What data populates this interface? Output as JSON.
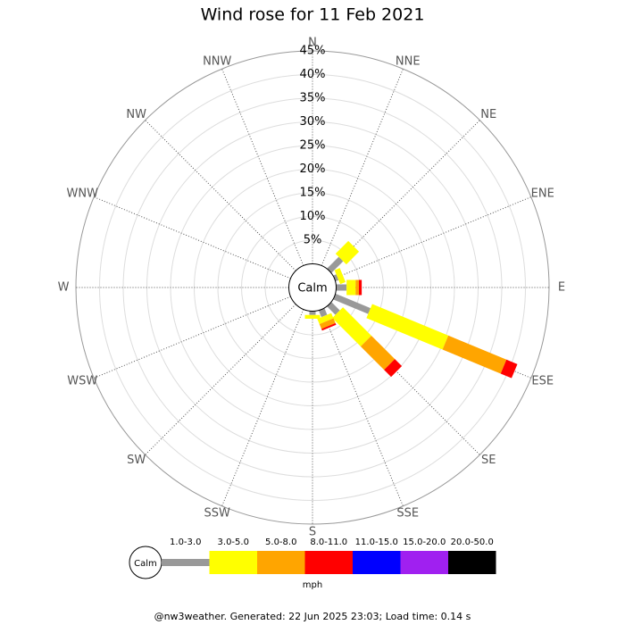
{
  "chart_data": {
    "type": "windrose",
    "title": "Wind rose for 11 Feb 2021",
    "categories": [
      "N",
      "NNE",
      "NE",
      "ENE",
      "E",
      "ESE",
      "SE",
      "SSE",
      "S",
      "SSW",
      "SW",
      "WSW",
      "W",
      "WNW",
      "NW",
      "NNW"
    ],
    "calm_label": "Calm",
    "unit_label": "mph",
    "rlim": [
      0,
      45
    ],
    "rticks": [
      {
        "value": 5,
        "label": "5%"
      },
      {
        "value": 10,
        "label": "10%"
      },
      {
        "value": 15,
        "label": "15%"
      },
      {
        "value": 20,
        "label": "20%"
      },
      {
        "value": 25,
        "label": "25%"
      },
      {
        "value": 30,
        "label": "30%"
      },
      {
        "value": 35,
        "label": "35%"
      },
      {
        "value": 40,
        "label": "40%"
      },
      {
        "value": 45,
        "label": "45%"
      }
    ],
    "series": [
      {
        "name": "1.0-3.0",
        "color": "#999999",
        "values": [
          0,
          0,
          3.5,
          0.7,
          2.2,
          8,
          2.5,
          1.5,
          0.8,
          0,
          0,
          0,
          0,
          0,
          0,
          0
        ]
      },
      {
        "name": "3.0-5.0",
        "color": "#ffff00",
        "values": [
          0,
          0,
          3.8,
          1.2,
          1.9,
          17.4,
          8.5,
          1.2,
          0.8,
          0,
          0,
          0,
          0,
          0,
          0,
          0
        ]
      },
      {
        "name": "5.0-8.0",
        "color": "#ffa500",
        "values": [
          0,
          0,
          0,
          0,
          0.7,
          13.3,
          7,
          1.1,
          0,
          0,
          0,
          0,
          0,
          0,
          0,
          0
        ]
      },
      {
        "name": "8.0-11.0",
        "color": "#ff0000",
        "values": [
          0,
          0,
          0,
          0,
          0.6,
          2.5,
          2.1,
          0.4,
          0,
          0,
          0,
          0,
          0,
          0,
          0,
          0
        ]
      },
      {
        "name": "11.0-15.0",
        "color": "#0000ff",
        "values": [
          0,
          0,
          0,
          0,
          0,
          0,
          0,
          0,
          0,
          0,
          0,
          0,
          0,
          0,
          0,
          0
        ]
      },
      {
        "name": "15.0-20.0",
        "color": "#a020f0",
        "values": [
          0,
          0,
          0,
          0,
          0,
          0,
          0,
          0,
          0,
          0,
          0,
          0,
          0,
          0,
          0,
          0
        ]
      },
      {
        "name": "20.0-50.0",
        "color": "#000000",
        "values": [
          0,
          0,
          0,
          0,
          0,
          0,
          0,
          0,
          0,
          0,
          0,
          0,
          0,
          0,
          0,
          0
        ]
      }
    ],
    "footer": "@nw3weather. Generated: 22 Jun 2025 23:03; Load time: 0.14 s"
  }
}
